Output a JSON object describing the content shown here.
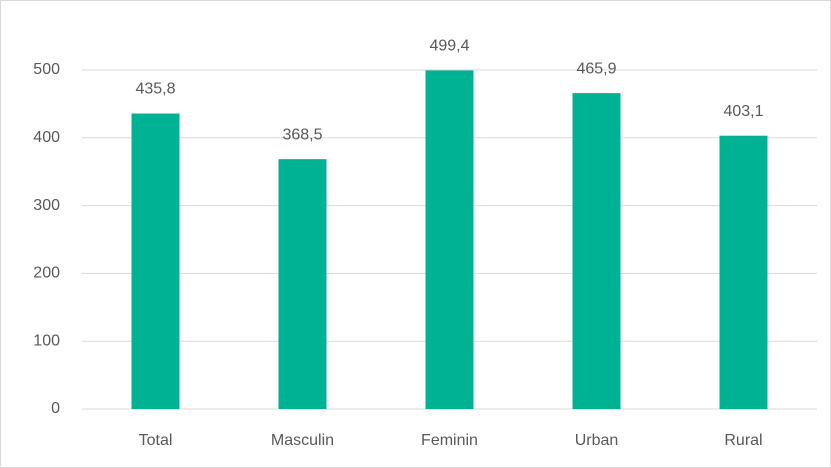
{
  "chart_data": {
    "type": "bar",
    "categories": [
      "Total",
      "Masculin",
      "Feminin",
      "Urban",
      "Rural"
    ],
    "values": [
      435.8,
      368.5,
      499.4,
      465.9,
      403.1
    ],
    "value_labels": [
      "435,8",
      "368,5",
      "499,4",
      "465,9",
      "403,1"
    ],
    "color": "#00b294",
    "ylim": [
      0,
      500
    ],
    "yticks": [
      0,
      100,
      200,
      300,
      400,
      500
    ],
    "grid": true
  }
}
